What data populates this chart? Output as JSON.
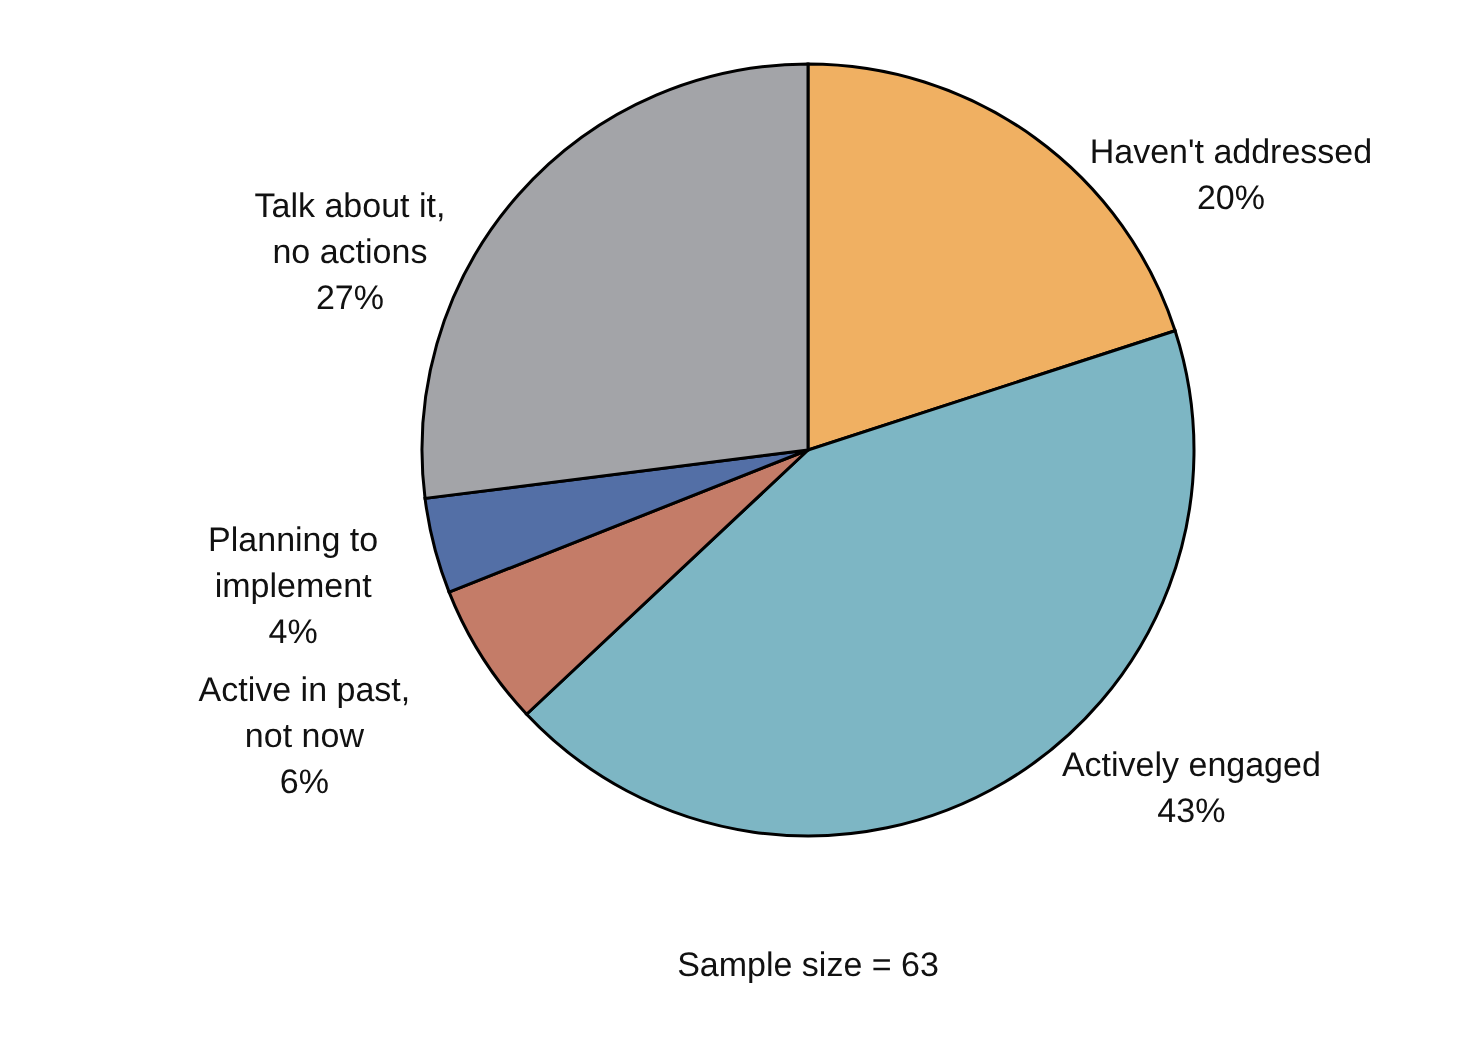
{
  "chart_data": {
    "type": "pie",
    "categories": [
      "Haven't addressed",
      "Actively engaged",
      "Active in past, not now",
      "Planning to implement",
      "Talk about it, no actions"
    ],
    "values": [
      20,
      43,
      6,
      4,
      27
    ],
    "value_labels": [
      "20%",
      "43%",
      "6%",
      "4%",
      "27%"
    ],
    "colors": [
      "#f0b062",
      "#7db6c4",
      "#c47c68",
      "#536fa6",
      "#a3a4a8"
    ],
    "annotations": [
      "Sample size = 63"
    ]
  }
}
